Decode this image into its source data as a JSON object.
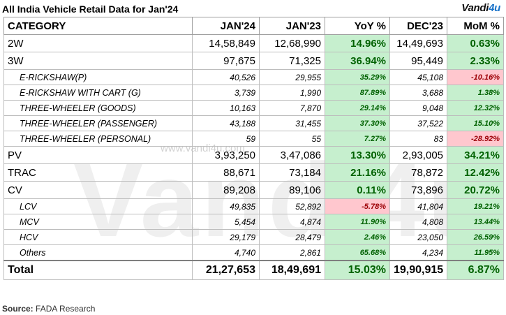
{
  "title": "All India Vehicle Retail Data for Jan'24",
  "logo": {
    "main": "Vandi",
    "accent": "4u"
  },
  "watermark": {
    "text": "Vandi4u",
    "url": "www.vandi4u.com"
  },
  "headers": [
    "CATEGORY",
    "JAN'24",
    "JAN'23",
    "YoY %",
    "DEC'23",
    "MoM %"
  ],
  "rows": [
    {
      "name": "2W",
      "jan24": "14,58,849",
      "jan23": "12,68,990",
      "yoy": "14.96%",
      "dec23": "14,49,693",
      "mom": "0.63%"
    },
    {
      "name": "3W",
      "jan24": "97,675",
      "jan23": "71,325",
      "yoy": "36.94%",
      "dec23": "95,449",
      "mom": "2.33%"
    },
    {
      "name": "E-RICKSHAW(P)",
      "jan24": "40,526",
      "jan23": "29,955",
      "yoy": "35.29%",
      "dec23": "45,108",
      "mom": "-10.16%"
    },
    {
      "name": "E-RICKSHAW WITH CART (G)",
      "jan24": "3,739",
      "jan23": "1,990",
      "yoy": "87.89%",
      "dec23": "3,688",
      "mom": "1.38%"
    },
    {
      "name": "THREE-WHEELER (GOODS)",
      "jan24": "10,163",
      "jan23": "7,870",
      "yoy": "29.14%",
      "dec23": "9,048",
      "mom": "12.32%"
    },
    {
      "name": "THREE-WHEELER (PASSENGER)",
      "jan24": "43,188",
      "jan23": "31,455",
      "yoy": "37.30%",
      "dec23": "37,522",
      "mom": "15.10%"
    },
    {
      "name": "THREE-WHEELER (PERSONAL)",
      "jan24": "59",
      "jan23": "55",
      "yoy": "7.27%",
      "dec23": "83",
      "mom": "-28.92%"
    },
    {
      "name": "PV",
      "jan24": "3,93,250",
      "jan23": "3,47,086",
      "yoy": "13.30%",
      "dec23": "2,93,005",
      "mom": "34.21%"
    },
    {
      "name": "TRAC",
      "jan24": "88,671",
      "jan23": "73,184",
      "yoy": "21.16%",
      "dec23": "78,872",
      "mom": "12.42%"
    },
    {
      "name": "CV",
      "jan24": "89,208",
      "jan23": "89,106",
      "yoy": "0.11%",
      "dec23": "73,896",
      "mom": "20.72%"
    },
    {
      "name": "LCV",
      "jan24": "49,835",
      "jan23": "52,892",
      "yoy": "-5.78%",
      "dec23": "41,804",
      "mom": "19.21%"
    },
    {
      "name": "MCV",
      "jan24": "5,454",
      "jan23": "4,874",
      "yoy": "11.90%",
      "dec23": "4,808",
      "mom": "13.44%"
    },
    {
      "name": "HCV",
      "jan24": "29,179",
      "jan23": "28,479",
      "yoy": "2.46%",
      "dec23": "23,050",
      "mom": "26.59%"
    },
    {
      "name": "Others",
      "jan24": "4,740",
      "jan23": "2,861",
      "yoy": "65.68%",
      "dec23": "4,234",
      "mom": "11.95%"
    },
    {
      "name": "Total",
      "jan24": "21,27,653",
      "jan23": "18,49,691",
      "yoy": "15.03%",
      "dec23": "19,90,915",
      "mom": "6.87%"
    }
  ],
  "source": {
    "label": "Source:",
    "text": "FADA Research"
  },
  "colors": {
    "positive_bg": "#c6efce",
    "positive_fg": "#006100",
    "negative_bg": "#ffc7ce",
    "negative_fg": "#9c0006"
  }
}
